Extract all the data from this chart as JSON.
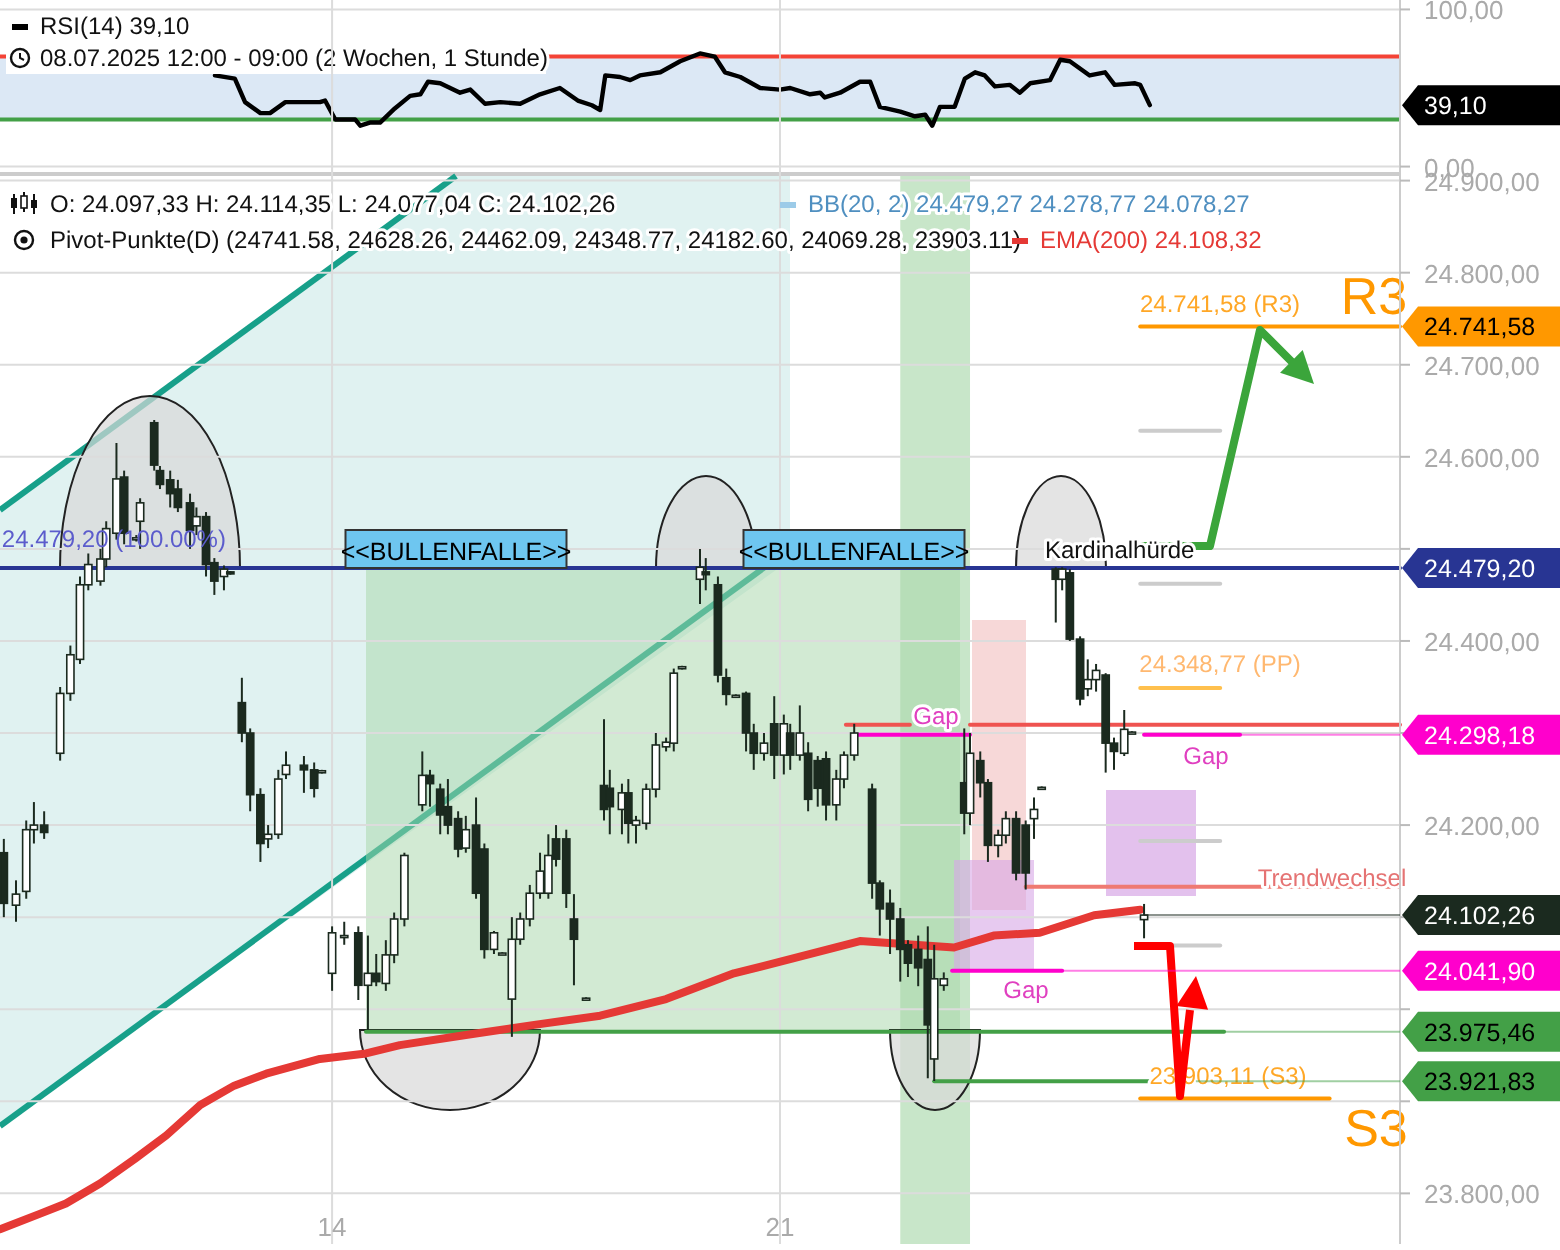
{
  "chart_data": [
    {
      "type": "line",
      "xlim": [
        8.81,
        30.69
      ],
      "ylim": [
        -6,
        106
      ],
      "yticks": [
        {
          "value": 0,
          "label": "0,00"
        },
        {
          "value": 100,
          "label": "100,00"
        }
      ],
      "tick_labels": "y",
      "grid": "y",
      "legend": "top left",
      "ref_lines": [
        {
          "axis": "y",
          "value": 70,
          "color": "#f44336"
        },
        {
          "axis": "y",
          "value": 30,
          "color": "#43a047"
        }
      ],
      "bands": [
        {
          "axis": "y",
          "from": 30,
          "to": 70,
          "color": "#dce8f5"
        }
      ],
      "annotations": [
        "39,10",
        "08.07.2025 12:00 - 09:00  (2 Wochen, 1 Stunde)"
      ],
      "series": [
        {
          "name": "RSI(14)",
          "color": "#000000",
          "x": [
            12.17,
            12.48,
            12.64,
            12.88,
            13.03,
            13.27,
            13.81,
            13.89,
            14.05,
            14.36,
            14.44,
            14.59,
            14.75,
            14.98,
            15.22,
            15.38,
            15.5,
            15.69,
            16,
            16.16,
            16.39,
            16.63,
            16.94,
            17.25,
            17.56,
            17.84,
            18.06,
            18.19,
            18.27,
            18.5,
            18.66,
            18.81,
            19.13,
            19.44,
            19.75,
            19.98,
            20.14,
            20.38,
            20.69,
            21,
            21.16,
            21.47,
            21.63,
            21.7,
            21.94,
            22.25,
            22.41,
            22.56,
            22.88,
            23.11,
            23.27,
            23.38,
            23.5,
            23.73,
            23.89,
            24.05,
            24.2,
            24.36,
            24.59,
            24.75,
            24.91,
            25.22,
            25.38,
            25.53,
            25.84,
            26.08,
            26.23,
            26.55,
            26.63,
            26.78
          ],
          "values": [
            58,
            56,
            41,
            34,
            34,
            41,
            41,
            42,
            30,
            30,
            26,
            28,
            28,
            37,
            45,
            46,
            54,
            53,
            47,
            49,
            40,
            41,
            40,
            46,
            50,
            42,
            39,
            36,
            58,
            57,
            55,
            58,
            60,
            67,
            72,
            70,
            60,
            57,
            50,
            49,
            50,
            46,
            47,
            44,
            47,
            54,
            54,
            38,
            35,
            32,
            33,
            26,
            38,
            38,
            56,
            60,
            58,
            51,
            52,
            47,
            53,
            55,
            68,
            67,
            58,
            60,
            52,
            53,
            52,
            39.1
          ]
        }
      ]
    },
    {
      "type": "candlestick",
      "color": "#1b2a1f",
      "subtitle": "O: 24.097,33  H: 24.114,35  L: 24.077,04  C: 24.102,26",
      "xlim": [
        8.81,
        30.69
      ],
      "xticks": [
        14,
        21
      ],
      "ylim": [
        23745,
        24905
      ],
      "yticks": [
        {
          "value": 23800,
          "label": "23.800,00"
        },
        {
          "value": 23900,
          "label": null
        },
        {
          "value": 24000,
          "label": null
        },
        {
          "value": 24100,
          "label": null
        },
        {
          "value": 24200,
          "label": "24.200,00"
        },
        {
          "value": 24300,
          "label": null
        },
        {
          "value": 24400,
          "label": "24.400,00"
        },
        {
          "value": 24500,
          "label": null
        },
        {
          "value": 24600,
          "label": "24.600,00"
        },
        {
          "value": 24700,
          "label": "24.700,00"
        },
        {
          "value": 24800,
          "label": "24.800,00"
        },
        {
          "value": 24900,
          "label": "24.900,00"
        }
      ],
      "grid": true,
      "legend": "top",
      "x": [
        8.87,
        9.06,
        9.22,
        9.34,
        9.5,
        9.75,
        9.91,
        10.06,
        10.19,
        10.38,
        10.47,
        10.63,
        10.75,
        10.94,
        11,
        11.22,
        11.31,
        11.47,
        11.59,
        11.78,
        11.88,
        12.03,
        12.16,
        12.31,
        12.41,
        12.59,
        12.72,
        12.88,
        13,
        13.16,
        13.28,
        13.56,
        13.72,
        13.84,
        14,
        14.19,
        14.41,
        14.56,
        14.69,
        14.84,
        14.97,
        15.13,
        15.41,
        15.53,
        15.69,
        15.81,
        15.97,
        16.09,
        16.25,
        16.38,
        16.53,
        16.66,
        16.81,
        16.94,
        17.09,
        17.25,
        17.38,
        17.5,
        17.66,
        17.78,
        17.97,
        18.25,
        18.34,
        18.53,
        18.63,
        18.75,
        18.91,
        19.06,
        19.22,
        19.34,
        19.47,
        19.75,
        19.84,
        20.03,
        20.16,
        20.31,
        20.47,
        20.59,
        20.75,
        20.91,
        21.06,
        21.16,
        21.31,
        21.44,
        21.59,
        21.72,
        21.88,
        22,
        22.16,
        22.44,
        22.56,
        22.72,
        22.88,
        23,
        23.16,
        23.31,
        23.41,
        23.56,
        23.88,
        23.97,
        24.13,
        24.25,
        24.41,
        24.53,
        24.69,
        24.84,
        24.97,
        25.09,
        25.31,
        25.41,
        25.53,
        25.69,
        25.81,
        25.94,
        26.09,
        26.22,
        26.38,
        26.5,
        26.69
      ],
      "ohlc": [
        [
          24170,
          24185,
          24100,
          24115
        ],
        [
          24113,
          24140,
          24095,
          24125
        ],
        [
          24128,
          24205,
          24120,
          24195
        ],
        [
          24195,
          24225,
          24180,
          24200
        ],
        [
          24200,
          24215,
          24185,
          24192
        ],
        [
          24278,
          24350,
          24270,
          24343
        ],
        [
          24343,
          24395,
          24335,
          24385
        ],
        [
          24380,
          24470,
          24375,
          24461
        ],
        [
          24461,
          24495,
          24455,
          24483
        ],
        [
          24465,
          24500,
          24460,
          24489
        ],
        [
          24489,
          24530,
          24480,
          24522
        ],
        [
          24517,
          24615,
          24510,
          24576
        ],
        [
          24578,
          24585,
          24505,
          24517
        ],
        [
          24510,
          24515,
          24508,
          24512
        ],
        [
          24530,
          24555,
          24500,
          24550
        ],
        [
          24637,
          24640,
          24585,
          24591
        ],
        [
          24585,
          24590,
          24565,
          24570
        ],
        [
          24575,
          24585,
          24545,
          24560
        ],
        [
          24565,
          24575,
          24540,
          24545
        ],
        [
          24550,
          24560,
          24500,
          24520
        ],
        [
          24525,
          24545,
          24515,
          24535
        ],
        [
          24535,
          24540,
          24470,
          24483
        ],
        [
          24485,
          24490,
          24450,
          24465
        ],
        [
          24470,
          24482,
          24455,
          24478
        ],
        [
          24475,
          24476,
          24472,
          24473
        ],
        [
          24333,
          24360,
          24290,
          24300
        ],
        [
          24300,
          24305,
          24215,
          24233
        ],
        [
          24233,
          24240,
          24160,
          24180
        ],
        [
          24185,
          24200,
          24175,
          24190
        ],
        [
          24190,
          24260,
          24185,
          24250
        ],
        [
          24255,
          24280,
          24250,
          24265
        ],
        [
          24265,
          24275,
          24235,
          24260
        ],
        [
          24260,
          24268,
          24230,
          24240
        ],
        [
          24257,
          24260,
          24256,
          24259
        ],
        [
          24039,
          24090,
          24020,
          24083
        ],
        [
          24080,
          24095,
          24070,
          24080
        ],
        [
          24083,
          24090,
          24010,
          24026
        ],
        [
          24026,
          24080,
          23978,
          24039
        ],
        [
          24039,
          24060,
          24025,
          24030
        ],
        [
          24028,
          24075,
          24020,
          24059
        ],
        [
          24059,
          24105,
          24050,
          24098
        ],
        [
          24098,
          24170,
          24090,
          24167
        ],
        [
          24222,
          24280,
          24215,
          24254
        ],
        [
          24254,
          24260,
          24220,
          24245
        ],
        [
          24239,
          24245,
          24190,
          24211
        ],
        [
          24220,
          24250,
          24190,
          24200
        ],
        [
          24207,
          24215,
          24165,
          24174
        ],
        [
          24175,
          24210,
          24170,
          24195
        ],
        [
          24200,
          24230,
          24120,
          24126
        ],
        [
          24174,
          24180,
          24055,
          24065
        ],
        [
          24065,
          24085,
          24060,
          24083
        ],
        [
          24060,
          24062,
          24059,
          24061
        ],
        [
          24011,
          24100,
          23970,
          24076
        ],
        [
          24076,
          24105,
          24070,
          24098
        ],
        [
          24098,
          24135,
          24090,
          24126
        ],
        [
          24126,
          24170,
          24120,
          24150
        ],
        [
          24126,
          24190,
          24120,
          24167
        ],
        [
          24185,
          24200,
          24155,
          24163
        ],
        [
          24185,
          24195,
          24110,
          24126
        ],
        [
          24098,
          24125,
          24026,
          24076
        ],
        [
          24011,
          24013,
          24010,
          24012
        ],
        [
          24243,
          24315,
          24205,
          24217
        ],
        [
          24240,
          24260,
          24190,
          24220
        ],
        [
          24217,
          24245,
          24190,
          24235
        ],
        [
          24235,
          24250,
          24180,
          24202
        ],
        [
          24200,
          24210,
          24180,
          24205
        ],
        [
          24202,
          24245,
          24195,
          24239
        ],
        [
          24239,
          24300,
          24230,
          24287
        ],
        [
          24285,
          24295,
          24280,
          24290
        ],
        [
          24289,
          24370,
          24280,
          24365
        ],
        [
          24370,
          24373,
          24369,
          24372
        ],
        [
          24467,
          24500,
          24440,
          24480
        ],
        [
          24475,
          24490,
          24455,
          24472
        ],
        [
          24461,
          24470,
          24355,
          24363
        ],
        [
          24360,
          24370,
          24330,
          24342
        ],
        [
          24340,
          24342,
          24339,
          24341
        ],
        [
          24343,
          24345,
          24280,
          24300
        ],
        [
          24300,
          24310,
          24260,
          24278
        ],
        [
          24278,
          24300,
          24270,
          24289
        ],
        [
          24310,
          24340,
          24250,
          24276
        ],
        [
          24276,
          24320,
          24255,
          24310
        ],
        [
          24300,
          24310,
          24260,
          24276
        ],
        [
          24276,
          24330,
          24270,
          24300
        ],
        [
          24278,
          24290,
          24215,
          24228
        ],
        [
          24270,
          24275,
          24220,
          24240
        ],
        [
          24272,
          24280,
          24205,
          24222
        ],
        [
          24222,
          24260,
          24205,
          24250
        ],
        [
          24250,
          24280,
          24240,
          24276
        ],
        [
          24276,
          24310,
          24270,
          24300
        ],
        [
          24239,
          24245,
          24120,
          24137
        ],
        [
          24137,
          24140,
          24080,
          24109
        ],
        [
          24115,
          24130,
          24060,
          24098
        ],
        [
          24098,
          24110,
          24030,
          24065
        ],
        [
          24070,
          24075,
          24035,
          24050
        ],
        [
          24065,
          24080,
          24025,
          24045
        ],
        [
          24054,
          24090,
          23925,
          23983
        ],
        [
          23946,
          24070,
          23922,
          24033
        ],
        [
          24026,
          24040,
          24020,
          24033
        ],
        [
          24246,
          24305,
          24190,
          24213
        ],
        [
          24213,
          24300,
          24200,
          24278
        ],
        [
          24270,
          24280,
          24230,
          24246
        ],
        [
          24246,
          24250,
          24160,
          24178
        ],
        [
          24178,
          24195,
          24165,
          24189
        ],
        [
          24189,
          24215,
          24180,
          24207
        ],
        [
          24207,
          24215,
          24140,
          24148
        ],
        [
          24200,
          24205,
          24130,
          24148
        ],
        [
          24207,
          24230,
          24185,
          24217
        ],
        [
          24240,
          24242,
          24239,
          24241
        ],
        [
          24478,
          24480,
          24420,
          24467
        ],
        [
          24467,
          24480,
          24455,
          24478
        ],
        [
          24474,
          24478,
          24400,
          24402
        ],
        [
          24402,
          24405,
          24330,
          24337
        ],
        [
          24348,
          24380,
          24340,
          24358
        ],
        [
          24358,
          24375,
          24345,
          24368
        ],
        [
          24363,
          24365,
          24257,
          24289
        ],
        [
          24289,
          24295,
          24260,
          24280
        ],
        [
          24278,
          24325,
          24275,
          24304
        ],
        [
          24300,
          24302,
          24299,
          24301
        ],
        [
          24097.33,
          24114.35,
          24077.04,
          24102.26
        ]
      ],
      "series": [
        {
          "name": "EMA(200)",
          "type": "line",
          "color": "#e53935",
          "x": [
            8.81,
            9.44,
            9.84,
            10.38,
            10.91,
            11.41,
            11.94,
            12.47,
            12.97,
            13.81,
            14.53,
            15.06,
            16.09,
            17.16,
            18.19,
            19.22,
            20.28,
            21.31,
            22.25,
            23.72,
            24.34,
            25.06,
            25.91,
            26.63
          ],
          "values": [
            23761,
            23778,
            23789,
            23811,
            23837,
            23863,
            23896,
            23917,
            23930,
            23946,
            23952,
            23961,
            23972,
            23983,
            23993,
            24011,
            24039,
            24057,
            24074,
            24067,
            24080,
            24083,
            24102,
            24108
          ]
        },
        {
          "type": "line",
          "color": "#283593",
          "x": [
            8.81,
            30.69
          ],
          "values": [
            24479.2,
            24479.2
          ]
        },
        {
          "type": "line",
          "color": "#ef5350",
          "x": [
            22.03,
            23.03
          ],
          "values": [
            24309,
            24309
          ]
        },
        {
          "type": "line",
          "color": "#ef5350",
          "x": [
            23.97,
            30.69
          ],
          "values": [
            24309,
            24309
          ]
        },
        {
          "type": "line",
          "color": "#ff00cc",
          "x": [
            22.19,
            23.97
          ],
          "values": [
            24298.18,
            24298.18
          ]
        },
        {
          "type": "line",
          "color": "#ff00cc",
          "x": [
            26.69,
            28.19
          ],
          "values": [
            24298.18,
            24298.18
          ]
        },
        {
          "type": "line",
          "color": "#ff00cc",
          "x": [
            23.69,
            25.41
          ],
          "values": [
            24041.9,
            24041.9
          ]
        },
        {
          "type": "line",
          "color": "#ef7a72",
          "x": [
            24.84,
            30.69
          ],
          "values": [
            24133.1,
            24133.1
          ]
        },
        {
          "type": "line",
          "color": "#43a047",
          "x": [
            14.53,
            27.94
          ],
          "values": [
            23975.46,
            23975.46
          ]
        },
        {
          "type": "line",
          "color": "#43a047",
          "x": [
            23.41,
            27.5
          ],
          "values": [
            23921.83,
            23921.83
          ]
        },
        {
          "type": "line",
          "color": "#ff9800",
          "x": [
            26.63,
            30.69
          ],
          "values": [
            24741.58,
            24741.58
          ]
        },
        {
          "type": "line",
          "color": "#ffc04d",
          "x": [
            26.63,
            27.88
          ],
          "values": [
            24348.77,
            24348.77
          ]
        },
        {
          "type": "line",
          "color": "#ff9800",
          "x": [
            26.63,
            29.59
          ],
          "values": [
            23903.11,
            23903.11
          ]
        },
        {
          "type": "line",
          "color": "#cccccc",
          "x": [
            26.63,
            27.88
          ],
          "values": [
            24628.26,
            24628.26
          ]
        },
        {
          "type": "line",
          "color": "#cccccc",
          "x": [
            26.63,
            27.88
          ],
          "values": [
            24462.09,
            24462.09
          ]
        },
        {
          "type": "line",
          "color": "#cccccc",
          "x": [
            26.63,
            27.88
          ],
          "values": [
            24182.6,
            24182.6
          ]
        },
        {
          "type": "line",
          "color": "#cccccc",
          "x": [
            26.63,
            27.88
          ],
          "values": [
            24069.28,
            24069.28
          ]
        }
      ],
      "bands": [
        {
          "axis": "x",
          "from": 22.88,
          "to": 23.97,
          "color": "#c8e6c9"
        }
      ],
      "annotations": [
        {
          "text": "Kardinalhürde",
          "x": 26.31,
          "y": 24490
        },
        {
          "text": "24.479,20 (100.00%)",
          "x": 10.59,
          "y": 24502
        },
        {
          "text": "24.741,58",
          "x": 30.69,
          "y": 24741.58
        },
        {
          "text": "24.479,20",
          "x": 30.69,
          "y": 24479.2
        },
        {
          "text": "24.298,18",
          "x": 28.19,
          "y": 24298.18
        },
        {
          "text": "24.102,26",
          "x": 26.69,
          "y": 24102.26
        },
        {
          "text": "24.041,90",
          "x": 25.41,
          "y": 24041.9
        },
        {
          "text": "23.975,46",
          "x": 27.94,
          "y": 23975.46
        },
        {
          "text": "23.921,83",
          "x": 27.5,
          "y": 23921.83
        },
        "<<BULLENFALLE>>",
        "<<BULLENFALLE>>",
        "Gap",
        "Gap",
        "Gap",
        "Trendwechsel",
        "24.741,58 (R3)",
        "R3",
        "24.348,77 (PP)",
        "23.903,11 (S3)",
        "S3",
        "BB(20, 2)  24.479,27  24.278,77  24.078,27",
        "Pivot-Punkte(D)  (24741.58,  24628.26,  24462.09,  24348.77,  24182.60,  24069.28,  23903.11)",
        "24.108,32"
      ]
    }
  ]
}
